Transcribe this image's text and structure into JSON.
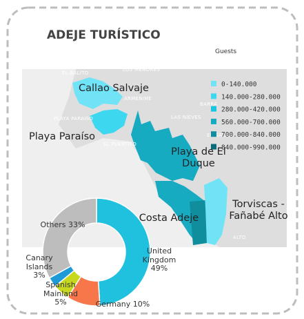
{
  "header": {
    "title": "ADEJE TURÍSTICO"
  },
  "legend": {
    "title": "Guests",
    "items": [
      {
        "label": "0-140.000",
        "color": "#70e3f6"
      },
      {
        "label": "140.000-280.000",
        "color": "#3dd7f0"
      },
      {
        "label": "280.000-420.000",
        "color": "#1cc5df"
      },
      {
        "label": "560.000-700.000",
        "color": "#17abc2"
      },
      {
        "label": "700.000-840.000",
        "color": "#108e9d"
      },
      {
        "label": "840.000-990.000",
        "color": "#0a6c78"
      }
    ]
  },
  "map": {
    "base_labels": [
      "EL BALITO",
      "LOS MENORES",
      "ARMEÑIME",
      "BARRA",
      "PLAYA PARAISO",
      "LAS NIEVES",
      "EL GALEO",
      "EL PUERTITO",
      "ALTO"
    ],
    "regions": [
      {
        "label": "Callao Salvaje",
        "color": "#70e3f6"
      },
      {
        "label": "Playa Paraíso",
        "color": "#3dd7f0"
      },
      {
        "label": "Playa de El Duque",
        "color": "#17abc2"
      },
      {
        "label": "Costa Adeje",
        "color": "#17abc2"
      },
      {
        "label": "Torviscas - Fañabé Alto",
        "color": "#70e3f6"
      }
    ]
  },
  "chart_data": {
    "type": "pie",
    "categories": [
      "United Kingdom",
      "Germany",
      "Spanish Mainland",
      "Canary Islands",
      "Others"
    ],
    "values": [
      49,
      10,
      5,
      3,
      33
    ],
    "value_labels": [
      "49%",
      "10%",
      "5%",
      "3%",
      "33%"
    ],
    "colors": [
      "#1fc1de",
      "#f7774b",
      "#c7d81f",
      "#1e9bd7",
      "#bdbdbd"
    ]
  }
}
